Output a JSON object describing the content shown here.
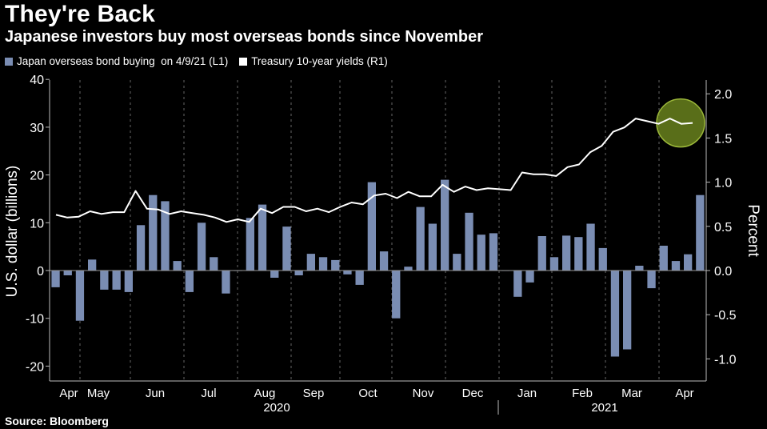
{
  "title": "They're Back",
  "subtitle": "Japanese investors buy most overseas bonds since November",
  "source": "Source: Bloomberg",
  "colors": {
    "background": "#000000",
    "bars": "#7a8db3",
    "line": "#ffffff",
    "highlight_fill": "#6f8a1f",
    "highlight_stroke": "#9cb83a",
    "grid": "#666666",
    "text": "#ffffff"
  },
  "chart_data": {
    "type": "bar+line",
    "left_axis_label": "U.S. dollar (billions)",
    "right_axis_label": "Percent",
    "left_ylim": [
      -20,
      40
    ],
    "right_ylim": [
      -1.0,
      2.0
    ],
    "left_ticks": [
      "40",
      "30",
      "20",
      "10",
      "0",
      "-10",
      "-20"
    ],
    "right_ticks": [
      "2.0",
      "1.5",
      "1.0",
      "0.5",
      "0.0",
      "-0.5",
      "-1.0"
    ],
    "month_labels": [
      "Apr",
      "May",
      "Jun",
      "Jul",
      "Aug",
      "Sep",
      "Oct",
      "Nov",
      "Dec",
      "Jan",
      "Feb",
      "Mar",
      "Apr"
    ],
    "year_labels": [
      "2020",
      "2021"
    ],
    "grid": "vertical dashed at month boundaries",
    "series": [
      {
        "name": "Japan overseas bond buying  on 4/9/21 (L1)",
        "type": "bar",
        "values": [
          -3.5,
          -1.0,
          -10.5,
          2.3,
          -4.0,
          -4.0,
          -4.5,
          9.5,
          15.8,
          14.5,
          2.0,
          -4.5,
          10.0,
          2.8,
          -4.8,
          0.0,
          11.0,
          13.8,
          -1.5,
          9.2,
          -1.0,
          3.5,
          2.8,
          2.2,
          -0.8,
          -3.0,
          18.5,
          4.0,
          -10.0,
          0.8,
          13.3,
          9.8,
          19.0,
          3.5,
          12.1,
          7.5,
          7.8,
          0.0,
          -5.5,
          -2.5,
          7.2,
          2.8,
          7.3,
          7.0,
          9.8,
          4.7,
          -18.0,
          -16.5,
          1.0,
          -3.7,
          5.2,
          2.0,
          3.4,
          15.8
        ]
      },
      {
        "name": "Treasury 10-year yields (R1)",
        "type": "line",
        "values": [
          0.63,
          0.6,
          0.61,
          0.67,
          0.64,
          0.66,
          0.66,
          0.9,
          0.7,
          0.69,
          0.64,
          0.67,
          0.65,
          0.63,
          0.6,
          0.55,
          0.58,
          0.55,
          0.7,
          0.65,
          0.72,
          0.72,
          0.67,
          0.7,
          0.66,
          0.72,
          0.77,
          0.75,
          0.85,
          0.87,
          0.82,
          0.89,
          0.84,
          0.84,
          0.97,
          0.89,
          0.95,
          0.91,
          0.93,
          0.92,
          0.91,
          1.11,
          1.09,
          1.09,
          1.07,
          1.17,
          1.2,
          1.34,
          1.41,
          1.57,
          1.62,
          1.72,
          1.69,
          1.66,
          1.72,
          1.66,
          1.67
        ]
      }
    ],
    "highlight": "circle around the most recent Treasury yield values"
  }
}
